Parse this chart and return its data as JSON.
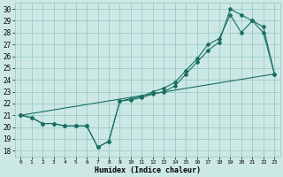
{
  "xlabel": "Humidex (Indice chaleur)",
  "xlim": [
    -0.5,
    23.5
  ],
  "ylim": [
    17.5,
    30.5
  ],
  "xticks": [
    0,
    1,
    2,
    3,
    4,
    5,
    6,
    7,
    8,
    9,
    10,
    11,
    12,
    13,
    14,
    15,
    16,
    17,
    18,
    19,
    20,
    21,
    22,
    23
  ],
  "yticks": [
    18,
    19,
    20,
    21,
    22,
    23,
    24,
    25,
    26,
    27,
    28,
    29,
    30
  ],
  "bg_color": "#cce8e5",
  "grid_color": "#99ccc8",
  "line_color": "#1a6e64",
  "line1_x": [
    0,
    1,
    2,
    3,
    4,
    5,
    6,
    7,
    8,
    9,
    10,
    11,
    12,
    13,
    14,
    15,
    16,
    17,
    18,
    19,
    20,
    21,
    22,
    23
  ],
  "line1_y": [
    21.0,
    20.8,
    20.3,
    20.3,
    20.1,
    20.1,
    20.1,
    18.3,
    18.8,
    22.2,
    22.3,
    22.5,
    22.8,
    23.0,
    23.5,
    24.5,
    25.5,
    26.5,
    27.2,
    30.0,
    29.5,
    29.0,
    28.0,
    24.5
  ],
  "line2_x": [
    0,
    1,
    2,
    3,
    4,
    5,
    6,
    7,
    8,
    9,
    10,
    11,
    12,
    13,
    14,
    15,
    16,
    17,
    18,
    19,
    20,
    21,
    22,
    23
  ],
  "line2_y": [
    21.0,
    20.8,
    20.3,
    20.3,
    20.1,
    20.1,
    20.1,
    18.3,
    18.8,
    22.2,
    22.4,
    22.6,
    23.0,
    23.3,
    23.8,
    24.8,
    25.8,
    27.0,
    27.5,
    29.5,
    28.0,
    29.0,
    28.5,
    24.5
  ],
  "line3_x": [
    0,
    23
  ],
  "line3_y": [
    21.0,
    24.5
  ]
}
